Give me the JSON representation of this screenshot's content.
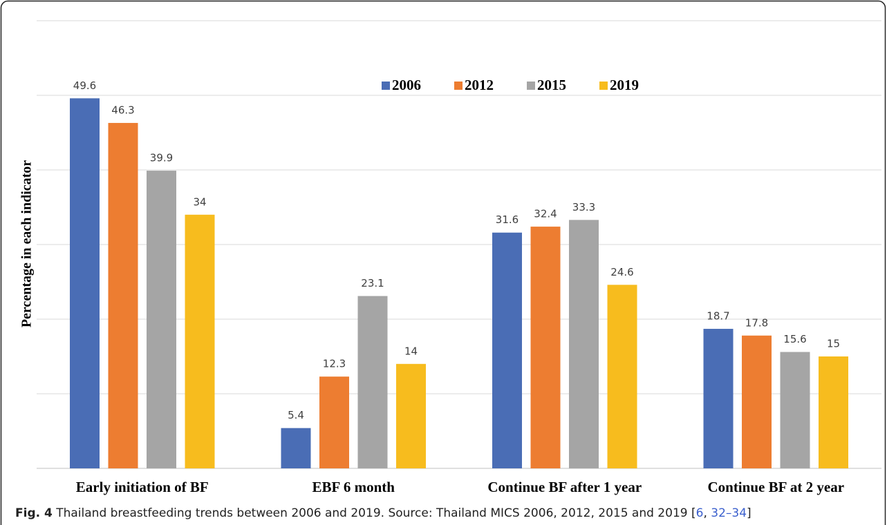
{
  "chart_data": {
    "type": "bar",
    "y_label": "Percentage in each indicator",
    "categories": [
      "Early initiation of BF",
      "EBF 6 month",
      "Continue BF after 1 year",
      "Continue BF at 2 year"
    ],
    "series": [
      {
        "name": "2006",
        "color": "#4a6db5",
        "values": [
          49.6,
          5.4,
          31.6,
          18.7
        ]
      },
      {
        "name": "2012",
        "color": "#ed7d31",
        "values": [
          46.3,
          12.3,
          32.4,
          17.8
        ]
      },
      {
        "name": "2015",
        "color": "#a5a5a5",
        "values": [
          39.9,
          23.1,
          33.3,
          15.6
        ]
      },
      {
        "name": "2019",
        "color": "#f7bc1e",
        "values": [
          34,
          14,
          24.6,
          15
        ]
      }
    ],
    "ylim": [
      0,
      60
    ],
    "yticks": [
      0,
      10,
      20,
      30,
      40,
      50,
      60
    ],
    "grid": true,
    "legend": "top"
  },
  "caption": {
    "label": "Fig. 4",
    "text": " Thailand breastfeeding trends between 2006 and 2019. Source: Thailand MICS 2006, 2012, 2015 and 2019 [",
    "refs": [
      "6",
      "32–34"
    ],
    "sep": ", ",
    "end": "]"
  }
}
